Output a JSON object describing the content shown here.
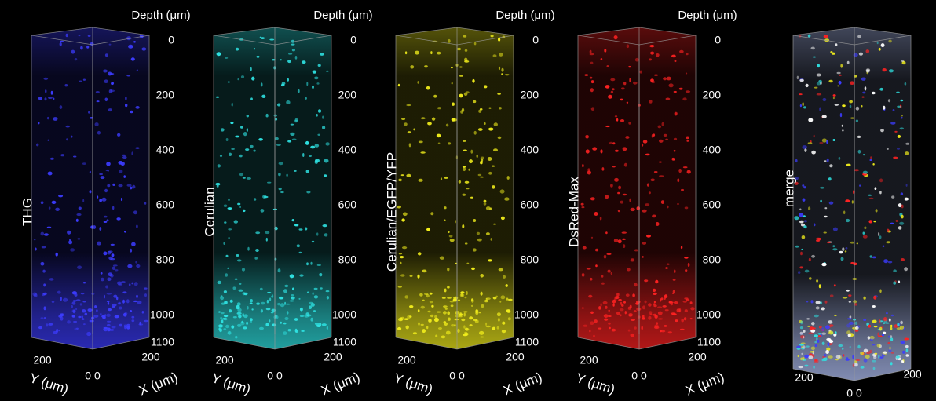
{
  "panels": [
    {
      "label": "THG",
      "depth_label": "Depth (μm)",
      "depth_ticks": [
        0,
        200,
        400,
        600,
        800,
        1000,
        1100
      ],
      "y_tick": "200",
      "origin": "0 0",
      "x_tick": "200",
      "y_label": "Y (μm)",
      "x_label": "X (μm)",
      "color": "#3c3cff"
    },
    {
      "label": "Cerulian",
      "depth_label": "Depth (μm)",
      "depth_ticks": [
        0,
        200,
        400,
        600,
        800,
        1000,
        1100
      ],
      "y_tick": "200",
      "origin": "0 0",
      "x_tick": "200",
      "y_label": "Y (μm)",
      "x_label": "X (μm)",
      "color": "#2fe3e3"
    },
    {
      "label": "Cerulian/EGFP/YFP",
      "depth_label": "Depth (μm)",
      "depth_ticks": [
        0,
        200,
        400,
        600,
        800,
        1000,
        1100
      ],
      "y_tick": "200",
      "origin": "0 0",
      "x_tick": "200",
      "y_label": "Y (μm)",
      "x_label": "X (μm)",
      "color": "#f2ee1c"
    },
    {
      "label": "DsRed-Max",
      "depth_label": "Depth (μm)",
      "depth_ticks": [
        0,
        200,
        400,
        600,
        800,
        1000,
        1100
      ],
      "y_tick": "200",
      "origin": "0 0",
      "x_tick": "200",
      "y_label": "Y (μm)",
      "x_label": "X (μm)",
      "color": "#ff2222"
    },
    {
      "label": "merge",
      "y_tick": "200",
      "origin": "0 0",
      "x_tick": "200"
    }
  ]
}
